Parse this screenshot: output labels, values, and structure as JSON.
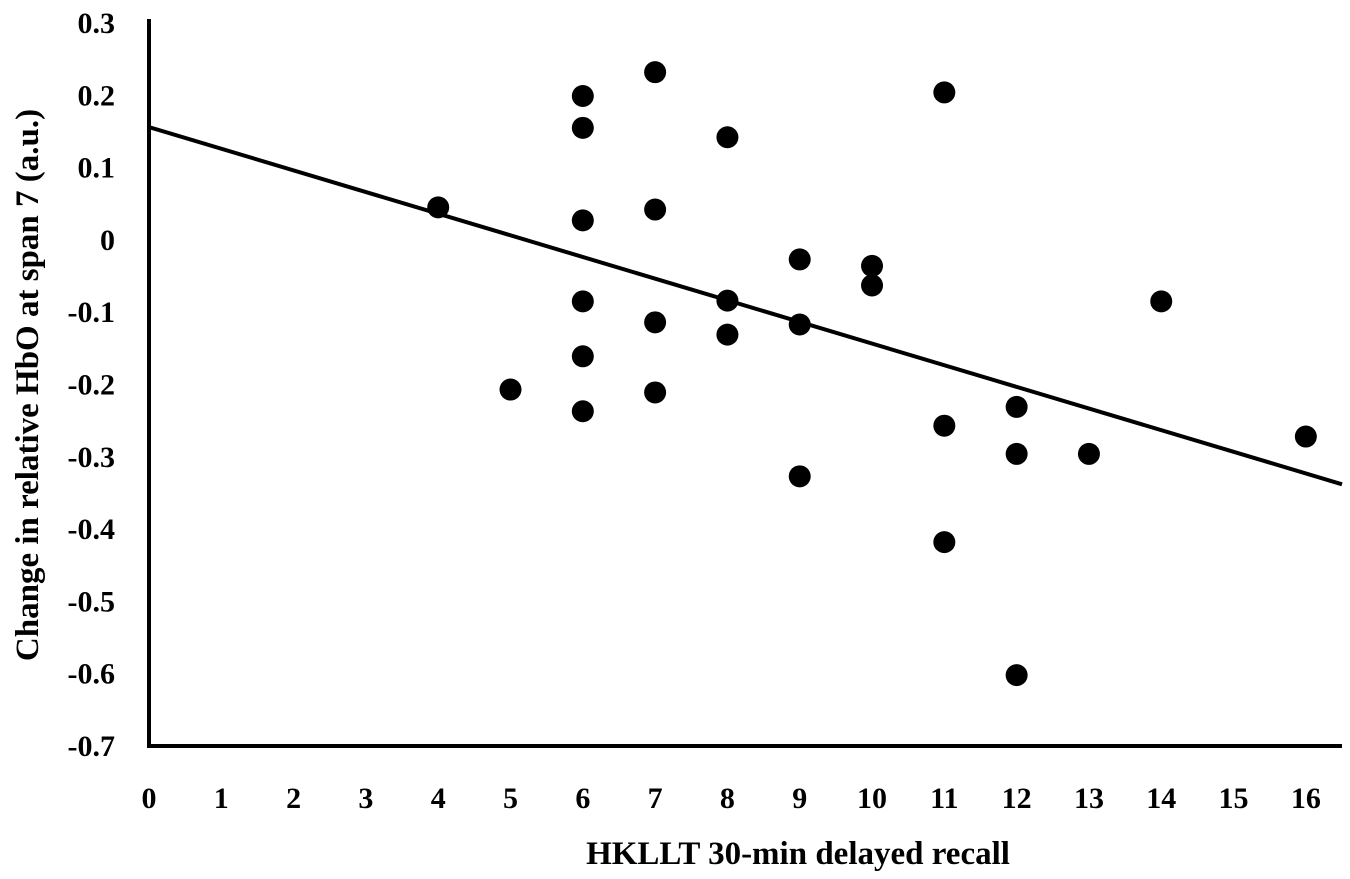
{
  "chart_data": {
    "type": "scatter",
    "title": "",
    "xlabel": "HKLLT 30-min delayed recall",
    "ylabel": "Change in relative HbO at span 7 (a.u.)",
    "xlim": [
      0,
      16.5
    ],
    "ylim": [
      -0.7,
      0.3
    ],
    "x_ticks": [
      "0",
      "1",
      "2",
      "3",
      "4",
      "5",
      "6",
      "7",
      "8",
      "9",
      "10",
      "11",
      "12",
      "13",
      "14",
      "15",
      "16"
    ],
    "y_ticks": [
      "0.3",
      "0.2",
      "0.1",
      "0",
      "-0.1",
      "-0.2",
      "-0.3",
      "-0.4",
      "-0.5",
      "-0.6",
      "-0.7"
    ],
    "grid": false,
    "legend": "none",
    "colors": {
      "points": "#000000",
      "trendline": "#000000"
    },
    "series": [
      {
        "points": [
          {
            "x": 4,
            "y": 0.045
          },
          {
            "x": 5,
            "y": -0.207
          },
          {
            "x": 6,
            "y": 0.199
          },
          {
            "x": 6,
            "y": 0.155
          },
          {
            "x": 6,
            "y": 0.027
          },
          {
            "x": 6,
            "y": -0.085
          },
          {
            "x": 6,
            "y": -0.161
          },
          {
            "x": 6,
            "y": -0.237
          },
          {
            "x": 7,
            "y": 0.232
          },
          {
            "x": 7,
            "y": 0.042
          },
          {
            "x": 7,
            "y": -0.114
          },
          {
            "x": 7,
            "y": -0.211
          },
          {
            "x": 8,
            "y": 0.142
          },
          {
            "x": 8,
            "y": -0.084
          },
          {
            "x": 8,
            "y": -0.131
          },
          {
            "x": 9,
            "y": -0.027
          },
          {
            "x": 9,
            "y": -0.117
          },
          {
            "x": 9,
            "y": -0.327
          },
          {
            "x": 10,
            "y": -0.036
          },
          {
            "x": 10,
            "y": -0.063
          },
          {
            "x": 11,
            "y": 0.204
          },
          {
            "x": 11,
            "y": -0.257
          },
          {
            "x": 11,
            "y": -0.418
          },
          {
            "x": 12,
            "y": -0.231
          },
          {
            "x": 12,
            "y": -0.296
          },
          {
            "x": 12,
            "y": -0.602
          },
          {
            "x": 13,
            "y": -0.296
          },
          {
            "x": 14,
            "y": -0.085
          },
          {
            "x": 16,
            "y": -0.272
          }
        ]
      }
    ],
    "trendline": {
      "type": "linear",
      "x": [
        0,
        16.5
      ],
      "y": [
        0.156,
        -0.338
      ]
    }
  }
}
